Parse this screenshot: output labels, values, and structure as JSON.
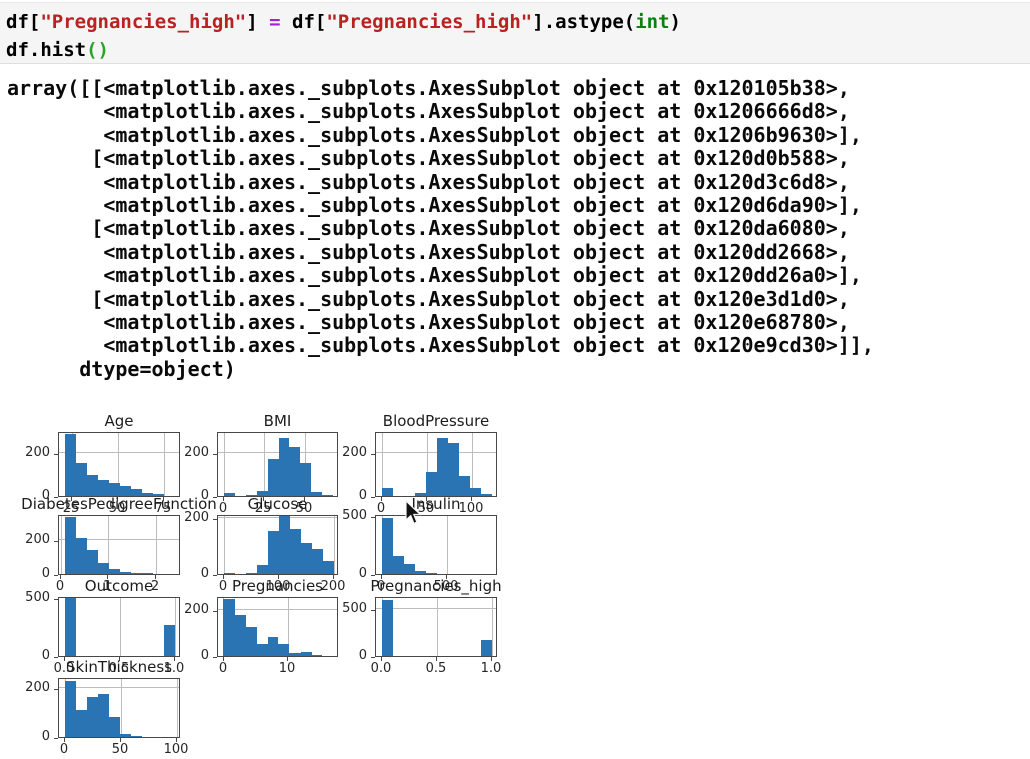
{
  "code_cell": {
    "lines": [
      {
        "tokens": [
          {
            "text": "df[",
            "style": "plain"
          },
          {
            "text": "\"Pregnancies_high\"",
            "style": "string"
          },
          {
            "text": "] ",
            "style": "plain"
          },
          {
            "text": "=",
            "style": "operator"
          },
          {
            "text": " df[",
            "style": "plain"
          },
          {
            "text": "\"Pregnancies_high\"",
            "style": "string"
          },
          {
            "text": "].astype(",
            "style": "plain"
          },
          {
            "text": "int",
            "style": "builtin"
          },
          {
            "text": ")",
            "style": "plain"
          }
        ]
      },
      {
        "tokens": [
          {
            "text": "df.hist",
            "style": "plain"
          },
          {
            "text": "()",
            "style": "bracket"
          }
        ]
      }
    ]
  },
  "output_text": {
    "lines": [
      "array([[<matplotlib.axes._subplots.AxesSubplot object at 0x120105b38>,",
      "        <matplotlib.axes._subplots.AxesSubplot object at 0x1206666d8>,",
      "        <matplotlib.axes._subplots.AxesSubplot object at 0x1206b9630>],",
      "       [<matplotlib.axes._subplots.AxesSubplot object at 0x120d0b588>,",
      "        <matplotlib.axes._subplots.AxesSubplot object at 0x120d3c6d8>,",
      "        <matplotlib.axes._subplots.AxesSubplot object at 0x120d6da90>],",
      "       [<matplotlib.axes._subplots.AxesSubplot object at 0x120da6080>,",
      "        <matplotlib.axes._subplots.AxesSubplot object at 0x120dd2668>,",
      "        <matplotlib.axes._subplots.AxesSubplot object at 0x120dd26a0>],",
      "       [<matplotlib.axes._subplots.AxesSubplot object at 0x120e3d1d0>,",
      "        <matplotlib.axes._subplots.AxesSubplot object at 0x120e68780>,",
      "        <matplotlib.axes._subplots.AxesSubplot object at 0x120e9cd30>]],",
      "      dtype=object)"
    ]
  },
  "chart_data": [
    {
      "type": "bar",
      "title": "Age",
      "grid": {
        "row": 0,
        "col": 0
      },
      "ymax": 300,
      "yticks": [
        {
          "v": 0,
          "label": "0"
        },
        {
          "v": 200,
          "label": "200"
        }
      ],
      "xlim": [
        18,
        84
      ],
      "bin_range": [
        21,
        81
      ],
      "xticks": [
        {
          "v": 25,
          "label": "25"
        },
        {
          "v": 50,
          "label": "50"
        },
        {
          "v": 75,
          "label": "75"
        }
      ],
      "counts": [
        285,
        150,
        98,
        76,
        60,
        44,
        30,
        16,
        7,
        2
      ]
    },
    {
      "type": "bar",
      "title": "BMI",
      "grid": {
        "row": 0,
        "col": 1
      },
      "ymax": 300,
      "yticks": [
        {
          "v": 0,
          "label": "0"
        },
        {
          "v": 200,
          "label": "200"
        }
      ],
      "xlim": [
        -3.36,
        70.46
      ],
      "bin_range": [
        0,
        67.1
      ],
      "xticks": [
        {
          "v": 0,
          "label": "0"
        },
        {
          "v": 25,
          "label": "25"
        },
        {
          "v": 50,
          "label": "50"
        }
      ],
      "counts": [
        12,
        0,
        3,
        25,
        170,
        268,
        228,
        150,
        18,
        4
      ]
    },
    {
      "type": "bar",
      "title": "BloodPressure",
      "grid": {
        "row": 0,
        "col": 2
      },
      "ymax": 300,
      "yticks": [
        {
          "v": 0,
          "label": "0"
        },
        {
          "v": 200,
          "label": "200"
        }
      ],
      "xlim": [
        -6.1,
        128.1
      ],
      "bin_range": [
        0,
        122
      ],
      "xticks": [
        {
          "v": 0,
          "label": "0"
        },
        {
          "v": 50,
          "label": "50"
        },
        {
          "v": 100,
          "label": "100"
        }
      ],
      "counts": [
        35,
        0,
        2,
        12,
        110,
        268,
        243,
        90,
        35,
        8
      ]
    },
    {
      "type": "bar",
      "title": "DiabetesPedigreeFunction",
      "grid": {
        "row": 1,
        "col": 0
      },
      "ymax": 350,
      "yticks": [
        {
          "v": 0,
          "label": "0"
        },
        {
          "v": 200,
          "label": "200"
        }
      ],
      "xlim": [
        -0.039,
        2.537
      ],
      "bin_range": [
        0.078,
        2.42
      ],
      "xticks": [
        {
          "v": 0,
          "label": "0"
        },
        {
          "v": 1,
          "label": "1"
        },
        {
          "v": 2,
          "label": "2"
        }
      ],
      "counts": [
        330,
        208,
        140,
        62,
        28,
        14,
        8,
        4,
        2,
        1
      ]
    },
    {
      "type": "bar",
      "title": "Glucose",
      "grid": {
        "row": 1,
        "col": 1
      },
      "ymax": 215,
      "yticks": [
        {
          "v": 0,
          "label": "0"
        },
        {
          "v": 200,
          "label": "200"
        }
      ],
      "xlim": [
        -9.95,
        208.95
      ],
      "bin_range": [
        0,
        199
      ],
      "xticks": [
        {
          "v": 0,
          "label": "0"
        },
        {
          "v": 100,
          "label": "100"
        },
        {
          "v": 200,
          "label": "200"
        }
      ],
      "counts": [
        5,
        0,
        2,
        32,
        155,
        208,
        160,
        112,
        88,
        48
      ]
    },
    {
      "type": "bar",
      "title": "Insulin",
      "grid": {
        "row": 1,
        "col": 2
      },
      "ymax": 520,
      "yticks": [
        {
          "v": 0,
          "label": "0"
        },
        {
          "v": 500,
          "label": "500"
        }
      ],
      "xlim": [
        -42.3,
        888.3
      ],
      "bin_range": [
        0,
        846
      ],
      "xticks": [
        {
          "v": 0,
          "label": "0"
        },
        {
          "v": 500,
          "label": "500"
        }
      ],
      "counts": [
        487,
        156,
        87,
        30,
        10,
        4,
        2,
        1,
        0,
        2
      ]
    },
    {
      "type": "bar",
      "title": "Outcome",
      "grid": {
        "row": 2,
        "col": 0
      },
      "ymax": 520,
      "yticks": [
        {
          "v": 0,
          "label": "0"
        },
        {
          "v": 500,
          "label": "500"
        }
      ],
      "xlim": [
        -0.05,
        1.05
      ],
      "bin_range": [
        0,
        1
      ],
      "xticks": [
        {
          "v": 0,
          "label": "0.0"
        },
        {
          "v": 0.5,
          "label": "0.5"
        },
        {
          "v": 1,
          "label": "1.0"
        }
      ],
      "counts": [
        500,
        0,
        0,
        0,
        0,
        0,
        0,
        0,
        0,
        268
      ]
    },
    {
      "type": "bar",
      "title": "Pregnancies",
      "grid": {
        "row": 2,
        "col": 1
      },
      "ymax": 260,
      "yticks": [
        {
          "v": 0,
          "label": "0"
        },
        {
          "v": 200,
          "label": "200"
        }
      ],
      "xlim": [
        -0.85,
        17.85
      ],
      "bin_range": [
        0,
        17
      ],
      "xticks": [
        {
          "v": 0,
          "label": "0"
        },
        {
          "v": 10,
          "label": "10"
        }
      ],
      "counts": [
        246,
        178,
        125,
        50,
        83,
        52,
        11,
        19,
        3,
        1
      ]
    },
    {
      "type": "bar",
      "title": "Pregnancies_high",
      "grid": {
        "row": 2,
        "col": 2
      },
      "ymax": 640,
      "yticks": [
        {
          "v": 0,
          "label": "0"
        },
        {
          "v": 500,
          "label": "500"
        }
      ],
      "xlim": [
        -0.05,
        1.05
      ],
      "bin_range": [
        0,
        1
      ],
      "xticks": [
        {
          "v": 0,
          "label": "0.0"
        },
        {
          "v": 0.5,
          "label": "0.5"
        },
        {
          "v": 1,
          "label": "1.0"
        }
      ],
      "counts": [
        599,
        0,
        0,
        0,
        0,
        0,
        0,
        0,
        0,
        169
      ]
    },
    {
      "type": "bar",
      "title": "SkinThickness",
      "grid": {
        "row": 3,
        "col": 0
      },
      "ymax": 245,
      "yticks": [
        {
          "v": 0,
          "label": "0"
        },
        {
          "v": 200,
          "label": "200"
        }
      ],
      "xlim": [
        -4.95,
        103.95
      ],
      "bin_range": [
        0,
        99
      ],
      "xticks": [
        {
          "v": 0,
          "label": "0"
        },
        {
          "v": 50,
          "label": "50"
        },
        {
          "v": 100,
          "label": "100"
        }
      ],
      "counts": [
        227,
        110,
        165,
        175,
        80,
        12,
        5,
        2,
        1,
        1
      ]
    }
  ]
}
